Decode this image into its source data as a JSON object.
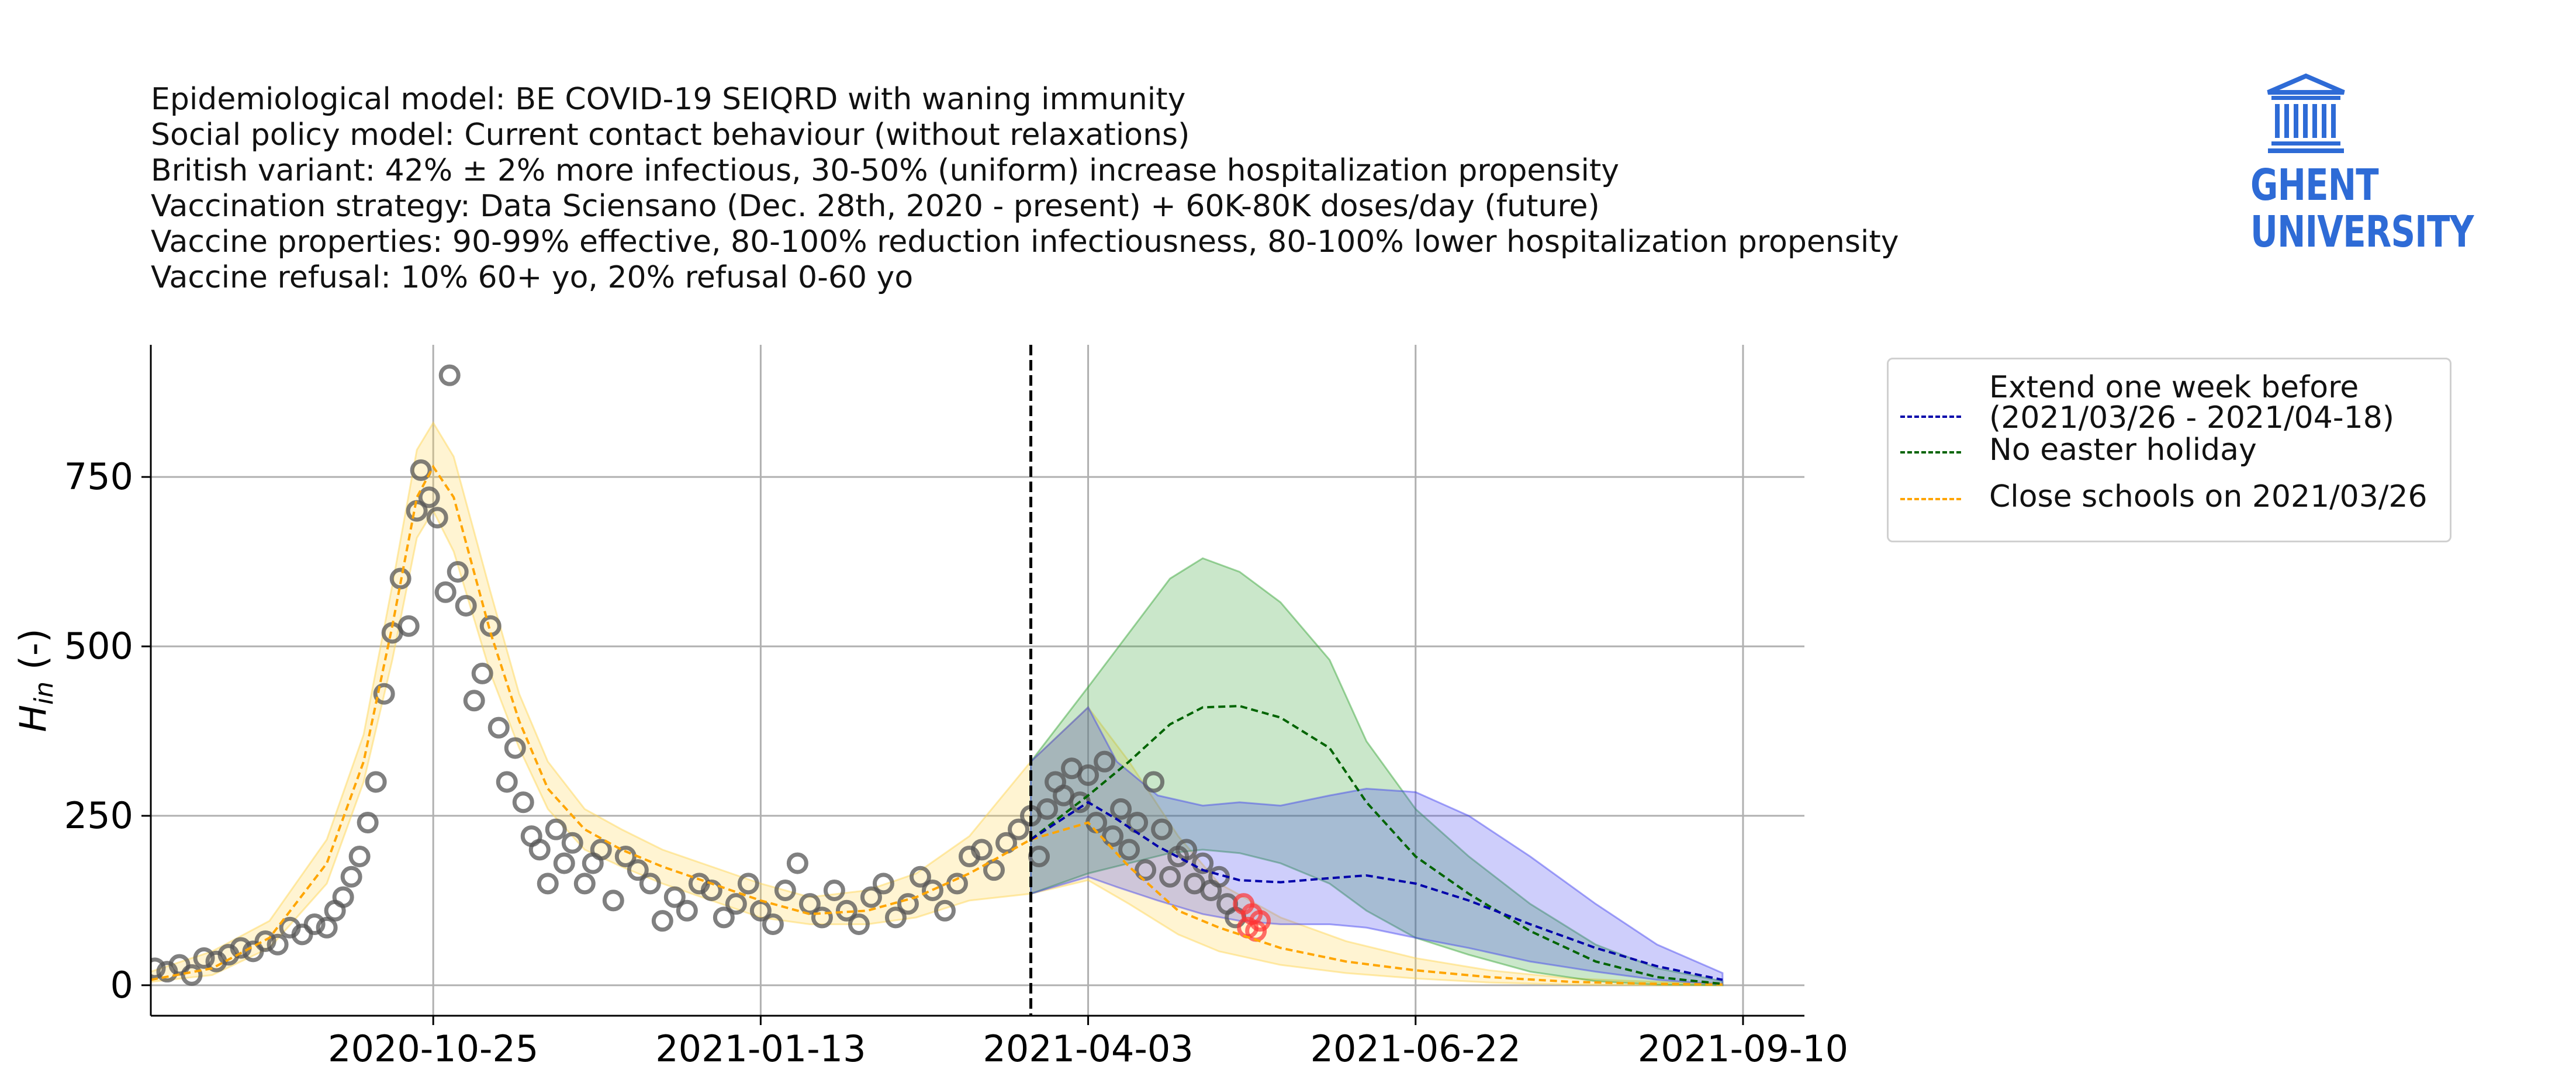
{
  "header": {
    "lines": [
      "Epidemiological model: BE COVID-19 SEIQRD with waning immunity",
      "Social policy model: Current contact behaviour (without relaxations)",
      "British variant: 42% ± 2% more infectious, 30-50% (uniform) increase hospitalization propensity",
      "Vaccination strategy: Data Sciensano (Dec. 28th, 2020 - present) + 60K-80K doses/day (future)",
      "Vaccine properties: 90-99% effective, 80-100% reduction infectiousness, 80-100% lower hospitalization propensity",
      "Vaccine refusal: 10% 60+ yo, 20% refusal 0-60 yo"
    ]
  },
  "logo": {
    "line1": "GHENT",
    "line2": "UNIVERSITY",
    "color": "#2e6bd6"
  },
  "chart_data": {
    "type": "line",
    "xlabel": "",
    "ylabel": "H",
    "ylabel_subscript": "in",
    "ylabel_suffix": " (-)",
    "x_domain": [
      "2020-08-17",
      "2021-09-25"
    ],
    "ylim": [
      -45,
      945
    ],
    "x_ticks": [
      "2020-10-25",
      "2021-01-13",
      "2021-04-03",
      "2021-06-22",
      "2021-09-10"
    ],
    "y_ticks": [
      0,
      250,
      500,
      750
    ],
    "grid": true,
    "vline": "2021-03-20",
    "legend_position": "top-right, outside plot area",
    "legend": [
      {
        "label_lines": [
          "Extend one week before",
          "(2021/03/26 - 2021/04-18)"
        ],
        "color": "#0000aa"
      },
      {
        "label_lines": [
          "No easter holiday"
        ],
        "color": "#006400"
      },
      {
        "label_lines": [
          "Close schools on 2021/03/26"
        ],
        "color": "#ffa500"
      }
    ],
    "series": [
      {
        "name": "Extend one week before (2021/03/26 - 2021/04-18)",
        "color": "#0000aa",
        "band_color": "#3c3cf0",
        "points": [
          [
            "2021-03-20",
            215,
            135,
            330
          ],
          [
            "2021-04-03",
            270,
            160,
            410
          ],
          [
            "2021-04-10",
            245,
            145,
            330
          ],
          [
            "2021-04-20",
            205,
            125,
            280
          ],
          [
            "2021-05-01",
            170,
            105,
            265
          ],
          [
            "2021-05-10",
            155,
            95,
            270
          ],
          [
            "2021-05-20",
            152,
            90,
            265
          ],
          [
            "2021-06-01",
            158,
            90,
            280
          ],
          [
            "2021-06-10",
            162,
            85,
            290
          ],
          [
            "2021-06-22",
            150,
            70,
            285
          ],
          [
            "2021-07-05",
            125,
            55,
            250
          ],
          [
            "2021-07-20",
            90,
            35,
            190
          ],
          [
            "2021-08-05",
            55,
            20,
            120
          ],
          [
            "2021-08-20",
            28,
            8,
            60
          ],
          [
            "2021-09-05",
            8,
            1,
            18
          ]
        ]
      },
      {
        "name": "No easter holiday",
        "color": "#006400",
        "band_color": "#2ca02c",
        "points": [
          [
            "2021-03-20",
            215,
            135,
            330
          ],
          [
            "2021-04-03",
            280,
            165,
            440
          ],
          [
            "2021-04-13",
            330,
            180,
            520
          ],
          [
            "2021-04-23",
            385,
            195,
            600
          ],
          [
            "2021-05-01",
            410,
            200,
            630
          ],
          [
            "2021-05-10",
            412,
            195,
            610
          ],
          [
            "2021-05-20",
            395,
            180,
            565
          ],
          [
            "2021-06-01",
            350,
            150,
            480
          ],
          [
            "2021-06-10",
            270,
            110,
            360
          ],
          [
            "2021-06-22",
            190,
            70,
            260
          ],
          [
            "2021-07-05",
            135,
            45,
            190
          ],
          [
            "2021-07-20",
            80,
            20,
            120
          ],
          [
            "2021-08-05",
            35,
            6,
            60
          ],
          [
            "2021-08-20",
            12,
            1,
            25
          ],
          [
            "2021-09-05",
            2,
            0,
            6
          ]
        ]
      },
      {
        "name": "Close schools on 2021/03/26",
        "color": "#ffa500",
        "band_color": "#ffd24a",
        "points": [
          [
            "2020-08-17",
            8,
            5,
            20
          ],
          [
            "2020-09-01",
            25,
            15,
            50
          ],
          [
            "2020-09-15",
            70,
            55,
            95
          ],
          [
            "2020-09-29",
            180,
            150,
            215
          ],
          [
            "2020-10-08",
            330,
            300,
            370
          ],
          [
            "2020-10-15",
            530,
            480,
            590
          ],
          [
            "2020-10-21",
            720,
            660,
            790
          ],
          [
            "2020-10-25",
            765,
            700,
            830
          ],
          [
            "2020-10-30",
            720,
            640,
            780
          ],
          [
            "2020-11-08",
            520,
            460,
            580
          ],
          [
            "2020-11-15",
            390,
            350,
            430
          ],
          [
            "2020-11-22",
            290,
            260,
            330
          ],
          [
            "2020-12-01",
            230,
            200,
            260
          ],
          [
            "2020-12-10",
            200,
            175,
            230
          ],
          [
            "2020-12-20",
            175,
            150,
            200
          ],
          [
            "2021-01-01",
            150,
            125,
            175
          ],
          [
            "2021-01-13",
            125,
            100,
            150
          ],
          [
            "2021-01-25",
            105,
            90,
            130
          ],
          [
            "2021-02-08",
            110,
            90,
            140
          ],
          [
            "2021-02-20",
            130,
            100,
            165
          ],
          [
            "2021-03-05",
            165,
            125,
            220
          ],
          [
            "2021-03-20",
            215,
            135,
            330
          ],
          [
            "2021-04-03",
            240,
            155,
            410
          ],
          [
            "2021-04-13",
            175,
            120,
            330
          ],
          [
            "2021-04-25",
            110,
            75,
            220
          ],
          [
            "2021-05-05",
            85,
            50,
            150
          ],
          [
            "2021-05-20",
            55,
            30,
            100
          ],
          [
            "2021-06-05",
            35,
            18,
            65
          ],
          [
            "2021-06-22",
            22,
            10,
            40
          ],
          [
            "2021-07-10",
            12,
            4,
            22
          ],
          [
            "2021-07-30",
            5,
            1,
            10
          ],
          [
            "2021-08-20",
            2,
            0,
            5
          ],
          [
            "2021-09-05",
            1,
            0,
            3
          ]
        ]
      }
    ],
    "observed": {
      "color": "#555555",
      "points": [
        [
          "2020-08-18",
          25
        ],
        [
          "2020-08-21",
          20
        ],
        [
          "2020-08-24",
          30
        ],
        [
          "2020-08-27",
          15
        ],
        [
          "2020-08-30",
          40
        ],
        [
          "2020-09-02",
          35
        ],
        [
          "2020-09-05",
          45
        ],
        [
          "2020-09-08",
          55
        ],
        [
          "2020-09-11",
          50
        ],
        [
          "2020-09-14",
          65
        ],
        [
          "2020-09-17",
          60
        ],
        [
          "2020-09-20",
          85
        ],
        [
          "2020-09-23",
          75
        ],
        [
          "2020-09-26",
          90
        ],
        [
          "2020-09-29",
          85
        ],
        [
          "2020-10-01",
          110
        ],
        [
          "2020-10-03",
          130
        ],
        [
          "2020-10-05",
          160
        ],
        [
          "2020-10-07",
          190
        ],
        [
          "2020-10-09",
          240
        ],
        [
          "2020-10-11",
          300
        ],
        [
          "2020-10-13",
          430
        ],
        [
          "2020-10-15",
          520
        ],
        [
          "2020-10-17",
          600
        ],
        [
          "2020-10-19",
          530
        ],
        [
          "2020-10-21",
          700
        ],
        [
          "2020-10-22",
          760
        ],
        [
          "2020-10-24",
          720
        ],
        [
          "2020-10-26",
          690
        ],
        [
          "2020-10-28",
          580
        ],
        [
          "2020-10-29",
          900
        ],
        [
          "2020-10-31",
          610
        ],
        [
          "2020-11-02",
          560
        ],
        [
          "2020-11-04",
          420
        ],
        [
          "2020-11-06",
          460
        ],
        [
          "2020-11-08",
          530
        ],
        [
          "2020-11-10",
          380
        ],
        [
          "2020-11-12",
          300
        ],
        [
          "2020-11-14",
          350
        ],
        [
          "2020-11-16",
          270
        ],
        [
          "2020-11-18",
          220
        ],
        [
          "2020-11-20",
          200
        ],
        [
          "2020-11-22",
          150
        ],
        [
          "2020-11-24",
          230
        ],
        [
          "2020-11-26",
          180
        ],
        [
          "2020-11-28",
          210
        ],
        [
          "2020-12-01",
          150
        ],
        [
          "2020-12-03",
          180
        ],
        [
          "2020-12-05",
          200
        ],
        [
          "2020-12-08",
          125
        ],
        [
          "2020-12-11",
          190
        ],
        [
          "2020-12-14",
          170
        ],
        [
          "2020-12-17",
          150
        ],
        [
          "2020-12-20",
          95
        ],
        [
          "2020-12-23",
          130
        ],
        [
          "2020-12-26",
          110
        ],
        [
          "2020-12-29",
          150
        ],
        [
          "2021-01-01",
          140
        ],
        [
          "2021-01-04",
          100
        ],
        [
          "2021-01-07",
          120
        ],
        [
          "2021-01-10",
          150
        ],
        [
          "2021-01-13",
          110
        ],
        [
          "2021-01-16",
          90
        ],
        [
          "2021-01-19",
          140
        ],
        [
          "2021-01-22",
          180
        ],
        [
          "2021-01-25",
          120
        ],
        [
          "2021-01-28",
          100
        ],
        [
          "2021-01-31",
          140
        ],
        [
          "2021-02-03",
          110
        ],
        [
          "2021-02-06",
          90
        ],
        [
          "2021-02-09",
          130
        ],
        [
          "2021-02-12",
          150
        ],
        [
          "2021-02-15",
          100
        ],
        [
          "2021-02-18",
          120
        ],
        [
          "2021-02-21",
          160
        ],
        [
          "2021-02-24",
          140
        ],
        [
          "2021-02-27",
          110
        ],
        [
          "2021-03-02",
          150
        ],
        [
          "2021-03-05",
          190
        ],
        [
          "2021-03-08",
          200
        ],
        [
          "2021-03-11",
          170
        ],
        [
          "2021-03-14",
          210
        ],
        [
          "2021-03-17",
          230
        ],
        [
          "2021-03-20",
          250
        ],
        [
          "2021-03-22",
          190
        ],
        [
          "2021-03-24",
          260
        ],
        [
          "2021-03-26",
          300
        ],
        [
          "2021-03-28",
          280
        ],
        [
          "2021-03-30",
          320
        ],
        [
          "2021-04-01",
          270
        ],
        [
          "2021-04-03",
          310
        ],
        [
          "2021-04-05",
          240
        ],
        [
          "2021-04-07",
          330
        ],
        [
          "2021-04-09",
          220
        ],
        [
          "2021-04-11",
          260
        ],
        [
          "2021-04-13",
          200
        ],
        [
          "2021-04-15",
          240
        ],
        [
          "2021-04-17",
          170
        ],
        [
          "2021-04-19",
          300
        ],
        [
          "2021-04-21",
          230
        ],
        [
          "2021-04-23",
          160
        ],
        [
          "2021-04-25",
          190
        ],
        [
          "2021-04-27",
          200
        ],
        [
          "2021-04-29",
          150
        ],
        [
          "2021-05-01",
          180
        ],
        [
          "2021-05-03",
          140
        ],
        [
          "2021-05-05",
          160
        ],
        [
          "2021-05-07",
          120
        ],
        [
          "2021-05-09",
          100
        ]
      ]
    },
    "observed_recent": {
      "color": "#ff3333",
      "points": [
        [
          "2021-05-11",
          120
        ],
        [
          "2021-05-12",
          85
        ],
        [
          "2021-05-13",
          105
        ],
        [
          "2021-05-14",
          80
        ],
        [
          "2021-05-15",
          95
        ]
      ]
    }
  }
}
